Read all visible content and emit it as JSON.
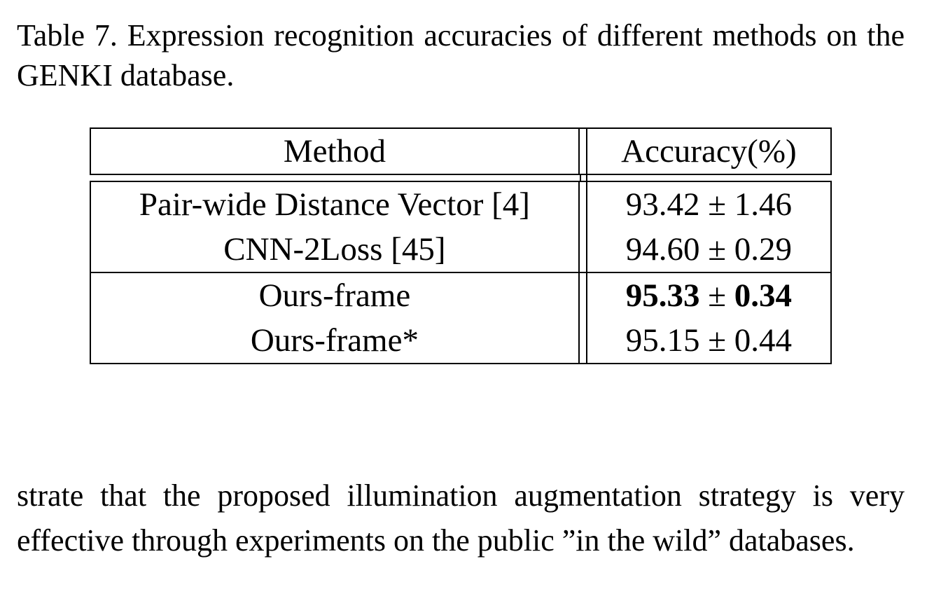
{
  "caption": "Table 7. Expression recognition accuracies of different methods on the GENKI database.",
  "table": {
    "headers": [
      "Method",
      "Accuracy(%)"
    ],
    "groups": [
      [
        {
          "method": "Pair-wide Distance Vector [4]",
          "mean": "93.42",
          "pm": "±",
          "std": "1.46",
          "bold": false
        },
        {
          "method": "CNN-2Loss [45]",
          "mean": "94.60",
          "pm": "±",
          "std": "0.29",
          "bold": false
        }
      ],
      [
        {
          "method": "Ours-frame",
          "mean": "95.33",
          "pm": "±",
          "std": "0.34",
          "bold": true
        },
        {
          "method": "Ours-frame*",
          "mean": "95.15",
          "pm": "±",
          "std": "0.44",
          "bold": false
        }
      ]
    ]
  },
  "body_text": "strate that the proposed illumination augmentation strategy is very effective through experiments on the public ”in the wild” databases."
}
